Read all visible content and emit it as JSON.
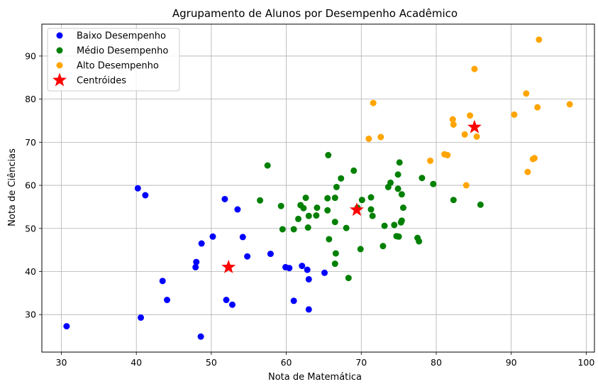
{
  "chart_data": {
    "type": "scatter",
    "title": "Agrupamento de Alunos por Desempenho Acadêmico",
    "xlabel": "Nota de Matemática",
    "ylabel": "Nota de Ciências",
    "xlim": [
      27.4,
      101.1
    ],
    "ylim": [
      21.3,
      97.4
    ],
    "xticks": [
      30,
      40,
      50,
      60,
      70,
      80,
      90,
      100
    ],
    "yticks": [
      30,
      40,
      50,
      60,
      70,
      80,
      90
    ],
    "grid": true,
    "legend_position": "top-left",
    "series": [
      {
        "name": "Baixo Desempenho",
        "color": "#0000ff",
        "marker": "circle",
        "points": [
          [
            30.7,
            27.3
          ],
          [
            40.2,
            59.3
          ],
          [
            41.2,
            57.7
          ],
          [
            40.6,
            29.3
          ],
          [
            43.5,
            37.8
          ],
          [
            44.1,
            33.4
          ],
          [
            47.9,
            41.0
          ],
          [
            48.0,
            42.2
          ],
          [
            48.7,
            46.5
          ],
          [
            48.6,
            24.9
          ],
          [
            50.2,
            48.1
          ],
          [
            51.8,
            56.8
          ],
          [
            52.0,
            33.4
          ],
          [
            52.8,
            32.3
          ],
          [
            53.5,
            54.4
          ],
          [
            54.2,
            48.0
          ],
          [
            54.8,
            43.5
          ],
          [
            57.9,
            44.1
          ],
          [
            59.9,
            41.0
          ],
          [
            60.4,
            40.8
          ],
          [
            61.0,
            33.2
          ],
          [
            62.1,
            41.3
          ],
          [
            62.8,
            40.4
          ],
          [
            63.0,
            38.2
          ],
          [
            63.0,
            31.2
          ],
          [
            65.1,
            39.7
          ]
        ]
      },
      {
        "name": "Médio Desempenho",
        "color": "#008000",
        "marker": "circle",
        "points": [
          [
            56.5,
            56.5
          ],
          [
            57.5,
            64.6
          ],
          [
            59.3,
            55.2
          ],
          [
            59.5,
            49.8
          ],
          [
            61.0,
            49.8
          ],
          [
            61.6,
            52.2
          ],
          [
            61.9,
            55.4
          ],
          [
            62.3,
            54.7
          ],
          [
            62.6,
            57.1
          ],
          [
            62.9,
            50.2
          ],
          [
            63.0,
            52.9
          ],
          [
            64.0,
            53.0
          ],
          [
            64.1,
            54.8
          ],
          [
            65.5,
            57.0
          ],
          [
            65.5,
            54.2
          ],
          [
            65.6,
            67.0
          ],
          [
            65.7,
            47.5
          ],
          [
            66.5,
            57.1
          ],
          [
            66.5,
            51.5
          ],
          [
            66.6,
            44.2
          ],
          [
            66.5,
            41.8
          ],
          [
            66.7,
            59.6
          ],
          [
            67.3,
            61.6
          ],
          [
            68.0,
            50.1
          ],
          [
            68.3,
            38.5
          ],
          [
            69.0,
            63.4
          ],
          [
            69.5,
            54.8
          ],
          [
            69.9,
            45.2
          ],
          [
            70.1,
            56.6
          ],
          [
            71.3,
            54.4
          ],
          [
            71.3,
            57.2
          ],
          [
            71.5,
            52.9
          ],
          [
            72.9,
            45.9
          ],
          [
            73.1,
            50.6
          ],
          [
            73.6,
            59.6
          ],
          [
            73.9,
            60.6
          ],
          [
            74.4,
            50.8
          ],
          [
            74.7,
            48.2
          ],
          [
            74.9,
            62.5
          ],
          [
            74.9,
            59.2
          ],
          [
            75.0,
            48.1
          ],
          [
            75.1,
            65.3
          ],
          [
            75.3,
            51.4
          ],
          [
            75.4,
            51.8
          ],
          [
            75.4,
            57.9
          ],
          [
            75.6,
            54.8
          ],
          [
            77.5,
            47.8
          ],
          [
            77.7,
            47.0
          ],
          [
            78.1,
            61.7
          ],
          [
            79.6,
            60.3
          ],
          [
            82.3,
            56.6
          ],
          [
            85.9,
            55.5
          ]
        ]
      },
      {
        "name": "Alto Desempenho",
        "color": "#ffa500",
        "marker": "circle",
        "points": [
          [
            71.0,
            70.8
          ],
          [
            71.6,
            79.1
          ],
          [
            72.6,
            71.2
          ],
          [
            79.2,
            65.7
          ],
          [
            81.1,
            67.2
          ],
          [
            81.5,
            67.0
          ],
          [
            82.2,
            75.3
          ],
          [
            82.3,
            74.1
          ],
          [
            83.8,
            71.8
          ],
          [
            84.0,
            60.0
          ],
          [
            84.5,
            76.2
          ],
          [
            85.1,
            87.0
          ],
          [
            85.4,
            71.3
          ],
          [
            90.4,
            76.4
          ],
          [
            92.0,
            81.3
          ],
          [
            92.2,
            63.1
          ],
          [
            92.9,
            66.1
          ],
          [
            93.1,
            66.3
          ],
          [
            93.5,
            78.1
          ],
          [
            93.7,
            93.8
          ],
          [
            97.8,
            78.8
          ]
        ]
      }
    ],
    "centroids": {
      "name": "Centróides",
      "color": "#ff0000",
      "marker": "star",
      "points": [
        [
          52.3,
          41.0
        ],
        [
          69.4,
          54.3
        ],
        [
          85.1,
          73.5
        ]
      ]
    }
  }
}
